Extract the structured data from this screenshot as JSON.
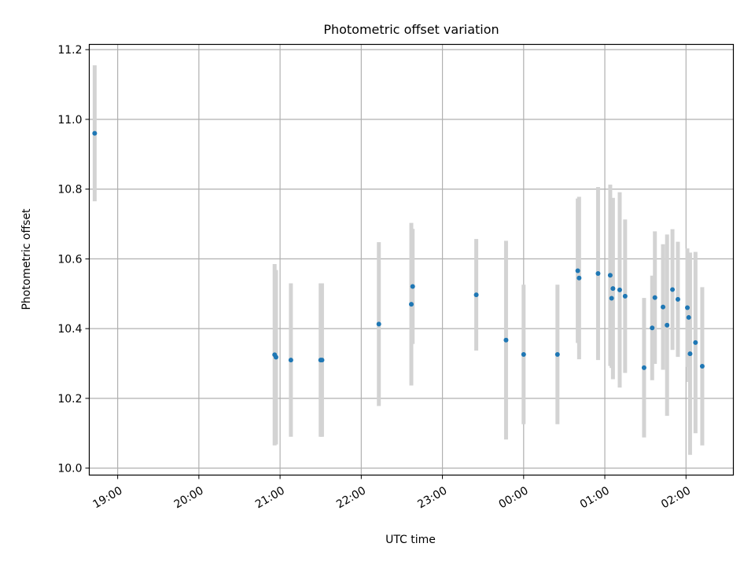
{
  "chart_data": {
    "type": "scatter",
    "title": "Photometric offset variation",
    "xlabel": "UTC time",
    "ylabel": "Photometric offset",
    "x_tick_labels": [
      "19:00",
      "20:00",
      "21:00",
      "22:00",
      "23:00",
      "00:00",
      "01:00",
      "02:00"
    ],
    "y_tick_labels": [
      "10.0",
      "10.2",
      "10.4",
      "10.6",
      "10.8",
      "11.0",
      "11.2"
    ],
    "x_ticks": [
      "19:00",
      "20:00",
      "21:00",
      "22:00",
      "23:00",
      "00:00",
      "01:00",
      "02:00"
    ],
    "y_ticks": [
      10.0,
      10.2,
      10.4,
      10.6,
      10.8,
      11.0,
      11.2
    ],
    "xlim": [
      "18:39",
      "02:35"
    ],
    "ylim": [
      9.98,
      11.215
    ],
    "grid": true,
    "colors": {
      "point": "#1f77b4",
      "errorbar": "#d3d3d3",
      "grid": "#b0b0b0"
    },
    "points": [
      {
        "t": "18:43",
        "y": 10.96,
        "err": 0.195
      },
      {
        "t": "20:56",
        "y": 10.325,
        "err": 0.26
      },
      {
        "t": "20:57",
        "y": 10.318,
        "err": 0.25
      },
      {
        "t": "21:08",
        "y": 10.31,
        "err": 0.22
      },
      {
        "t": "21:30",
        "y": 10.31,
        "err": 0.22
      },
      {
        "t": "21:31",
        "y": 10.31,
        "err": 0.22
      },
      {
        "t": "22:13",
        "y": 10.413,
        "err": 0.235
      },
      {
        "t": "22:37",
        "y": 10.47,
        "err": 0.233
      },
      {
        "t": "22:38",
        "y": 10.521,
        "err": 0.165
      },
      {
        "t": "23:25",
        "y": 10.497,
        "err": 0.16
      },
      {
        "t": "23:47",
        "y": 10.367,
        "err": 0.285
      },
      {
        "t": "00:00",
        "y": 10.326,
        "err": 0.2
      },
      {
        "t": "00:25",
        "y": 10.326,
        "err": 0.2
      },
      {
        "t": "00:40",
        "y": 10.566,
        "err": 0.207
      },
      {
        "t": "00:41",
        "y": 10.545,
        "err": 0.233
      },
      {
        "t": "00:55",
        "y": 10.558,
        "err": 0.248
      },
      {
        "t": "01:04",
        "y": 10.553,
        "err": 0.26
      },
      {
        "t": "01:05",
        "y": 10.487,
        "err": 0.2
      },
      {
        "t": "01:06",
        "y": 10.515,
        "err": 0.26
      },
      {
        "t": "01:11",
        "y": 10.511,
        "err": 0.28
      },
      {
        "t": "01:15",
        "y": 10.493,
        "err": 0.22
      },
      {
        "t": "01:29",
        "y": 10.288,
        "err": 0.2
      },
      {
        "t": "01:35",
        "y": 10.402,
        "err": 0.15
      },
      {
        "t": "01:37",
        "y": 10.489,
        "err": 0.19
      },
      {
        "t": "01:43",
        "y": 10.462,
        "err": 0.18
      },
      {
        "t": "01:46",
        "y": 10.41,
        "err": 0.26
      },
      {
        "t": "01:50",
        "y": 10.512,
        "err": 0.173
      },
      {
        "t": "01:54",
        "y": 10.484,
        "err": 0.165
      },
      {
        "t": "02:01",
        "y": 10.46,
        "err": 0.17
      },
      {
        "t": "02:02",
        "y": 10.432,
        "err": 0.185
      },
      {
        "t": "02:03",
        "y": 10.328,
        "err": 0.29
      },
      {
        "t": "02:07",
        "y": 10.36,
        "err": 0.26
      },
      {
        "t": "02:12",
        "y": 10.292,
        "err": 0.227
      }
    ]
  }
}
